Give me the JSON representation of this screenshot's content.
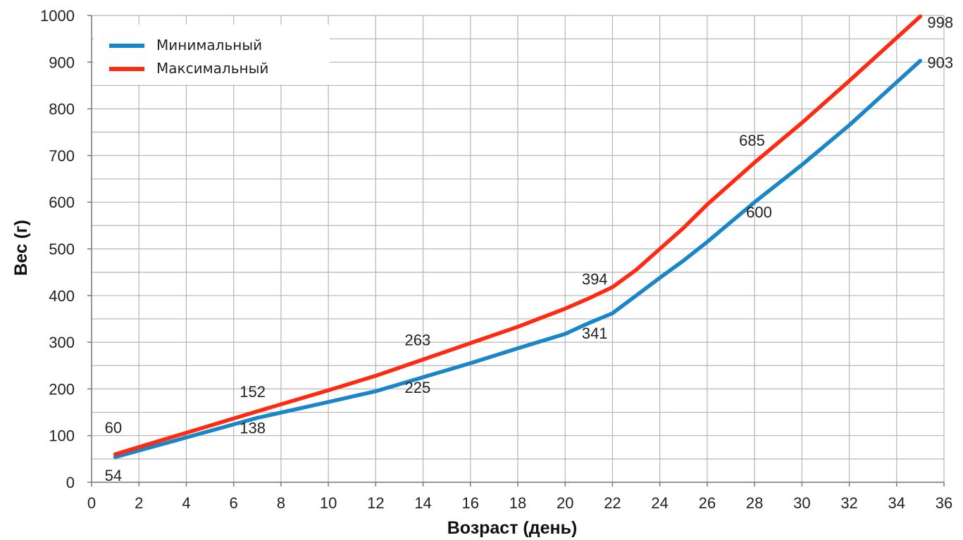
{
  "chart_data": {
    "type": "line",
    "xlabel": "Возраст (день)",
    "ylabel": "Вес (г)",
    "xlim": [
      0,
      36
    ],
    "ylim": [
      0,
      1000
    ],
    "x_ticks": [
      0,
      2,
      4,
      6,
      8,
      10,
      12,
      14,
      16,
      18,
      20,
      22,
      24,
      26,
      28,
      30,
      32,
      34,
      36
    ],
    "y_ticks": [
      0,
      100,
      200,
      300,
      400,
      500,
      600,
      700,
      800,
      900,
      1000
    ],
    "grid": true,
    "legend_position": "top-left",
    "series": [
      {
        "name": "Минимальный",
        "color": "#1a86c8",
        "points": [
          [
            1,
            54
          ],
          [
            4,
            96
          ],
          [
            7,
            138
          ],
          [
            10,
            172
          ],
          [
            12,
            195
          ],
          [
            14,
            225
          ],
          [
            16,
            255
          ],
          [
            18,
            287
          ],
          [
            20,
            318
          ],
          [
            21,
            341
          ],
          [
            22,
            362
          ],
          [
            23,
            400
          ],
          [
            24,
            438
          ],
          [
            25,
            475
          ],
          [
            26,
            515
          ],
          [
            28,
            600
          ],
          [
            30,
            680
          ],
          [
            32,
            765
          ],
          [
            35,
            903
          ]
        ],
        "labels": [
          {
            "x": 1,
            "y": 54,
            "text": "54"
          },
          {
            "x": 7,
            "y": 138,
            "text": "138"
          },
          {
            "x": 14,
            "y": 225,
            "text": "225"
          },
          {
            "x": 21,
            "y": 341,
            "text": "341"
          },
          {
            "x": 28,
            "y": 600,
            "text": "600"
          },
          {
            "x": 35,
            "y": 903,
            "text": "903"
          }
        ]
      },
      {
        "name": "Максимальный",
        "color": "#ff2a12",
        "points": [
          [
            1,
            60
          ],
          [
            4,
            106
          ],
          [
            7,
            152
          ],
          [
            10,
            197
          ],
          [
            12,
            228
          ],
          [
            14,
            263
          ],
          [
            16,
            298
          ],
          [
            18,
            333
          ],
          [
            20,
            372
          ],
          [
            21,
            394
          ],
          [
            22,
            418
          ],
          [
            23,
            455
          ],
          [
            24,
            500
          ],
          [
            25,
            545
          ],
          [
            26,
            595
          ],
          [
            28,
            685
          ],
          [
            30,
            770
          ],
          [
            32,
            860
          ],
          [
            35,
            998
          ]
        ],
        "labels": [
          {
            "x": 1,
            "y": 60,
            "text": "60"
          },
          {
            "x": 7,
            "y": 152,
            "text": "152"
          },
          {
            "x": 14,
            "y": 263,
            "text": "263"
          },
          {
            "x": 21,
            "y": 394,
            "text": "394"
          },
          {
            "x": 28,
            "y": 685,
            "text": "685"
          },
          {
            "x": 35,
            "y": 998,
            "text": "998"
          }
        ]
      }
    ]
  }
}
